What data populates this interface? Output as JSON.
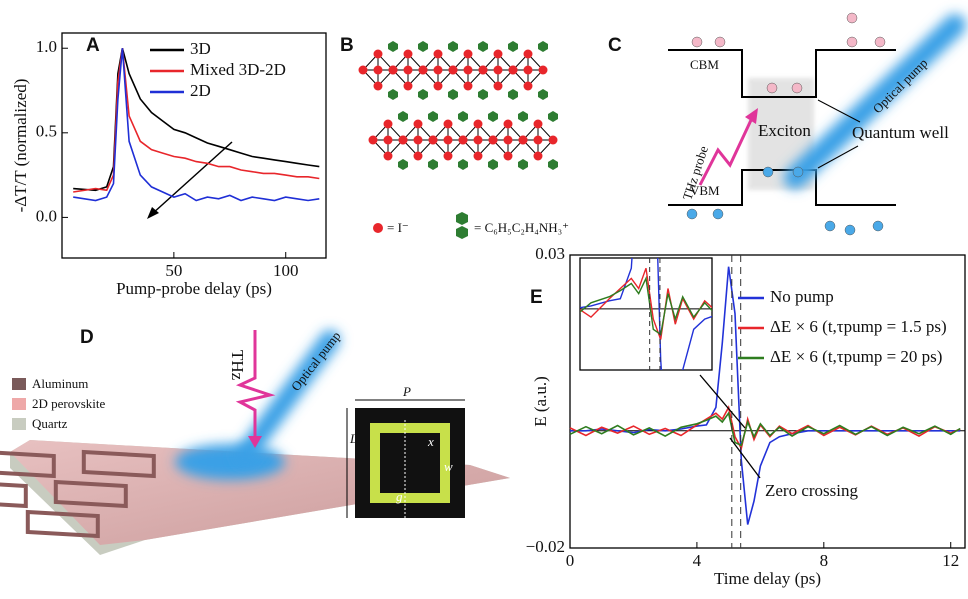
{
  "chart_data": [
    {
      "type": "line",
      "panel": "A",
      "xlabel": "Pump-probe delay (ps)",
      "ylabel": "-ΔT/T (normalized)",
      "x": [
        5,
        15,
        20,
        23,
        25,
        27,
        30,
        35,
        40,
        45,
        50,
        55,
        60,
        65,
        70,
        75,
        80,
        85,
        90,
        95,
        100,
        105,
        110,
        115
      ],
      "series": [
        {
          "name": "3D",
          "color": "#000000",
          "values": [
            0.17,
            0.16,
            0.18,
            0.3,
            0.85,
            1.0,
            0.85,
            0.7,
            0.62,
            0.57,
            0.52,
            0.5,
            0.47,
            0.44,
            0.42,
            0.4,
            0.38,
            0.36,
            0.35,
            0.34,
            0.33,
            0.32,
            0.31,
            0.3
          ]
        },
        {
          "name": "Mixed 3D-2D",
          "color": "#e8262b",
          "values": [
            0.15,
            0.17,
            0.16,
            0.25,
            0.8,
            1.0,
            0.6,
            0.45,
            0.4,
            0.38,
            0.36,
            0.35,
            0.33,
            0.32,
            0.3,
            0.3,
            0.28,
            0.27,
            0.26,
            0.26,
            0.25,
            0.24,
            0.24,
            0.23
          ]
        },
        {
          "name": "2D",
          "color": "#1f2fd6",
          "values": [
            0.12,
            0.1,
            0.12,
            0.2,
            0.7,
            1.0,
            0.45,
            0.25,
            0.18,
            0.15,
            0.12,
            0.14,
            0.1,
            0.12,
            0.11,
            0.13,
            0.1,
            0.12,
            0.11,
            0.1,
            0.12,
            0.11,
            0.1,
            0.11
          ]
        }
      ],
      "xlim": [
        0,
        118
      ],
      "ylim": [
        -0.24,
        1.09
      ],
      "xticks": [
        50,
        100
      ],
      "yticks": [
        {
          "value": 0,
          "label": "0.0"
        },
        {
          "value": 0.5,
          "label": "0.5"
        },
        {
          "value": 1,
          "label": "1.0"
        }
      ]
    },
    {
      "type": "line",
      "panel": "E",
      "xlabel": "Time delay (ps)",
      "ylabel": "E (a.u.)",
      "annotation": "Zero crossing",
      "x": [
        0,
        0.5,
        1,
        1.5,
        2,
        2.5,
        3,
        3.5,
        4,
        4.3,
        4.6,
        4.8,
        5,
        5.2,
        5.4,
        5.6,
        5.8,
        6,
        6.3,
        6.6,
        7,
        7.5,
        8,
        8.5,
        9,
        9.5,
        10,
        10.5,
        11,
        11.5,
        12,
        12.3
      ],
      "series": [
        {
          "name": "No pump",
          "color": "#2232d8",
          "values": [
            0,
            0,
            0.0003,
            0,
            -0.0003,
            0.0002,
            0,
            0.0003,
            0.0008,
            0.001,
            0.004,
            0.015,
            0.028,
            0.02,
            -0.005,
            -0.016,
            -0.012,
            -0.006,
            -0.002,
            -0.001,
            -0.0005,
            0,
            0,
            0,
            0,
            0,
            0,
            0,
            0,
            0,
            0,
            0
          ]
        },
        {
          "name": "ΔE × 6 (t,τpump = 1.5 ps)",
          "color": "#e8262b",
          "values": [
            0.0005,
            -0.0008,
            0.0006,
            -0.0004,
            0.0008,
            -0.0006,
            0.0004,
            -0.0008,
            0.001,
            0.002,
            0.003,
            0.002,
            0.004,
            -0.001,
            -0.003,
            0.002,
            -0.0015,
            0.001,
            -0.001,
            0.0008,
            -0.0005,
            0.0009,
            -0.0008,
            0.0006,
            -0.0007,
            0.0008,
            -0.0006,
            0.0005,
            -0.0009,
            0.0007,
            -0.0004,
            0.0003
          ]
        },
        {
          "name": "ΔE × 6 (t,τpump =  20 ps)",
          "color": "#2e7d1f",
          "values": [
            -0.0006,
            0.0007,
            -0.0005,
            0.0009,
            -0.0007,
            0.0005,
            -0.0009,
            0.0006,
            0.0012,
            0.0018,
            0.0025,
            0.0015,
            0.003,
            -0.002,
            -0.0025,
            0.0015,
            -0.001,
            0.0012,
            -0.0008,
            0.0006,
            -0.0009,
            0.0007,
            -0.0005,
            0.0009,
            -0.0006,
            0.0007,
            -0.0008,
            0.0006,
            -0.0005,
            0.0008,
            -0.0006,
            0.0004
          ]
        }
      ],
      "vlines": [
        5.1,
        5.38
      ],
      "inset": {
        "xlim": [
          3.2,
          6.8
        ],
        "ylim": [
          -0.006,
          0.005
        ]
      },
      "xlim": [
        0,
        12.45
      ],
      "ylim": [
        -0.02,
        0.03
      ],
      "xticks": [
        0,
        4,
        8,
        12
      ],
      "yticks": [
        {
          "value": -0.02,
          "label": "−0.02"
        },
        0.03
      ]
    }
  ],
  "panel_b": {
    "panel": "B",
    "iodide": "= I⁻",
    "cation": "= C₆H₅C₂H₄NH₃⁺"
  },
  "panel_c": {
    "panel": "C",
    "cbm": "CBM",
    "vbm": "VBM",
    "exciton": "Exciton",
    "well": "Quantum well",
    "pump": "Optical pump",
    "probe": "THz probe"
  },
  "panel_d": {
    "panel": "D",
    "materials": [
      "Aluminum",
      "2D perovskite",
      "Quartz"
    ],
    "thz": "THz",
    "pump": "Optical pump",
    "dims": [
      "P",
      "x",
      "w",
      "g",
      "L"
    ]
  }
}
